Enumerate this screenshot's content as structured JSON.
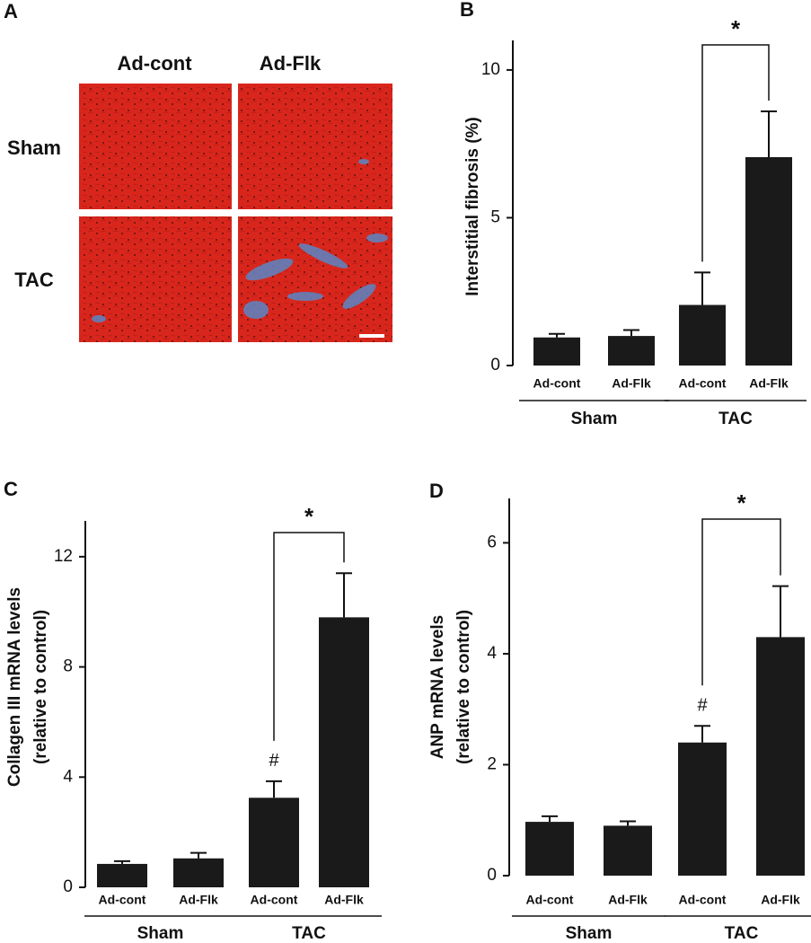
{
  "panel_a": {
    "label": "A",
    "columns": [
      "Ad-cont",
      "Ad-Flk"
    ],
    "rows": [
      "Sham",
      "TAC"
    ]
  },
  "chart_data": [
    {
      "type": "bar",
      "label": "B",
      "ylabel": [
        "Interstitial fibrosis (%)"
      ],
      "categories": [
        "Ad-cont",
        "Ad-Flk",
        "Ad-cont",
        "Ad-Flk"
      ],
      "groups": [
        {
          "name": "Sham",
          "span": 2
        },
        {
          "name": "TAC",
          "span": 2
        }
      ],
      "values": [
        0.95,
        1.0,
        2.05,
        7.05
      ],
      "errors": [
        0.12,
        0.2,
        1.1,
        1.55
      ],
      "color": "#1a1a1a",
      "ylim": [
        0,
        11
      ],
      "yticks": [
        0,
        5,
        10
      ],
      "significance": {
        "label": "*",
        "from": 2,
        "to": 3
      }
    },
    {
      "type": "bar",
      "label": "C",
      "ylabel": [
        "Collagen III mRNA levels",
        "(relative to control)"
      ],
      "categories": [
        "Ad-cont",
        "Ad-Flk",
        "Ad-cont",
        "Ad-Flk"
      ],
      "groups": [
        {
          "name": "Sham",
          "span": 2
        },
        {
          "name": "TAC",
          "span": 2
        }
      ],
      "values": [
        0.85,
        1.05,
        3.25,
        9.8
      ],
      "errors": [
        0.1,
        0.2,
        0.6,
        1.6
      ],
      "color": "#1a1a1a",
      "ylim": [
        0,
        13.3
      ],
      "yticks": [
        0,
        4,
        8,
        12
      ],
      "significance": {
        "label": "*",
        "from": 2,
        "to": 3
      },
      "markers": [
        {
          "index": 2,
          "label": "#"
        }
      ]
    },
    {
      "type": "bar",
      "label": "D",
      "ylabel": [
        "ANP mRNA levels",
        "(relative to control)"
      ],
      "categories": [
        "Ad-cont",
        "Ad-Flk",
        "Ad-cont",
        "Ad-Flk"
      ],
      "groups": [
        {
          "name": "Sham",
          "span": 2
        },
        {
          "name": "TAC",
          "span": 2
        }
      ],
      "values": [
        0.97,
        0.9,
        2.4,
        4.3
      ],
      "errors": [
        0.1,
        0.08,
        0.3,
        0.92
      ],
      "color": "#1a1a1a",
      "ylim": [
        0,
        6.8
      ],
      "yticks": [
        0,
        2,
        4,
        6
      ],
      "significance": {
        "label": "*",
        "from": 2,
        "to": 3
      },
      "markers": [
        {
          "index": 2,
          "label": "#"
        }
      ]
    }
  ]
}
